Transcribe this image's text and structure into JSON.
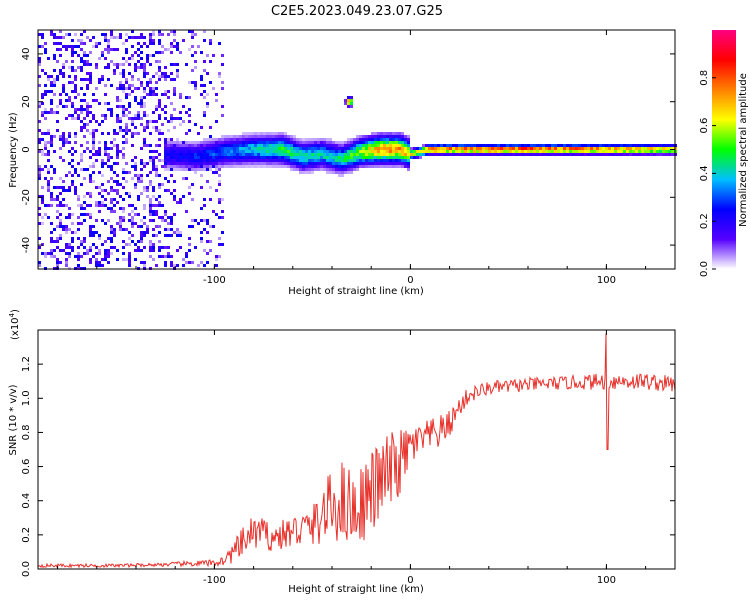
{
  "figure_title": "C2E5.2023.049.23.07.G25",
  "chart_data": [
    {
      "type": "heatmap",
      "title": "C2E5.2023.049.23.07.G25",
      "xlabel": "Height of straight line (km)",
      "ylabel": "Frequency (Hz)",
      "xlim": [
        -190,
        135
      ],
      "ylim": [
        -50,
        50
      ],
      "xticks": [
        -100,
        0,
        100
      ],
      "xtick_labels": [
        "-100",
        "0",
        "100"
      ],
      "yticks": [
        -40,
        -20,
        0,
        20,
        40
      ],
      "ytick_labels": [
        "-40",
        "-20",
        "0",
        "20",
        "40"
      ],
      "colorbar": {
        "label": "Normalized spectral amplitude",
        "range": [
          0,
          1
        ],
        "ticks": [
          0.0,
          0.2,
          0.4,
          0.6,
          0.8
        ],
        "tick_labels": [
          "0.0",
          "0.2",
          "0.4",
          "0.6",
          "0.8"
        ],
        "colors": [
          "#ffffff",
          "#5500ff",
          "#0000ff",
          "#00bfff",
          "#00ff00",
          "#ffff00",
          "#ff8000",
          "#ff0000",
          "#ff0080"
        ]
      },
      "ridge": {
        "description": "dominant frequency trace",
        "x": [
          -125,
          -110,
          -95,
          -80,
          -65,
          -55,
          -45,
          -35,
          -25,
          -15,
          -5,
          0,
          10,
          50,
          90,
          135
        ],
        "freq": [
          -2,
          -3,
          -1,
          0,
          0,
          -3,
          -2,
          -4,
          -1,
          0,
          0,
          -2,
          0,
          0,
          0,
          0
        ],
        "amplitude": [
          0.25,
          0.3,
          0.35,
          0.45,
          0.55,
          0.5,
          0.45,
          0.5,
          0.65,
          0.85,
          0.85,
          0.7,
          0.9,
          0.95,
          0.9,
          0.75
        ]
      },
      "noise_region": {
        "x_from": -190,
        "x_to": -95,
        "amplitude_max": 0.25
      },
      "spot": {
        "x": -31,
        "freq": 20,
        "amplitude": 0.9
      }
    },
    {
      "type": "line",
      "xlabel": "Height of straight line (km)",
      "ylabel": "SNR (10 * v/v)",
      "scale_label": "(x10",
      "scale_exponent": "4",
      "scale_suffix": ")",
      "xlim": [
        -190,
        135
      ],
      "ylim": [
        0,
        1.4
      ],
      "xticks": [
        -100,
        0,
        100
      ],
      "xtick_labels": [
        "-100",
        "0",
        "100"
      ],
      "yticks": [
        0.0,
        0.2,
        0.4,
        0.6,
        0.8,
        1.0,
        1.2
      ],
      "ytick_labels": [
        "0.0",
        "0.2",
        "0.4",
        "0.6",
        "0.8",
        "1.0",
        "1.2"
      ],
      "color": "#e8302a",
      "series": [
        {
          "name": "SNR",
          "x": [
            -190,
            -170,
            -150,
            -130,
            -115,
            -100,
            -95,
            -88,
            -82,
            -78,
            -70,
            -60,
            -50,
            -42,
            -35,
            -28,
            -20,
            -12,
            -5,
            0,
            5,
            10,
            15,
            20,
            25,
            30,
            40,
            60,
            80,
            100,
            120,
            135
          ],
          "mean": [
            0.02,
            0.02,
            0.02,
            0.025,
            0.03,
            0.035,
            0.05,
            0.12,
            0.2,
            0.22,
            0.18,
            0.22,
            0.25,
            0.35,
            0.4,
            0.35,
            0.45,
            0.55,
            0.62,
            0.72,
            0.75,
            0.78,
            0.8,
            0.85,
            0.95,
            1.02,
            1.06,
            1.08,
            1.09,
            1.1,
            1.1,
            1.08
          ],
          "spread": [
            0.01,
            0.01,
            0.01,
            0.01,
            0.015,
            0.02,
            0.03,
            0.08,
            0.1,
            0.1,
            0.08,
            0.1,
            0.12,
            0.2,
            0.25,
            0.22,
            0.25,
            0.25,
            0.2,
            0.12,
            0.1,
            0.1,
            0.1,
            0.08,
            0.06,
            0.05,
            0.04,
            0.04,
            0.04,
            0.05,
            0.05,
            0.05
          ]
        }
      ],
      "outlier": {
        "x": 100,
        "high": 1.38,
        "low": 0.7
      }
    }
  ]
}
